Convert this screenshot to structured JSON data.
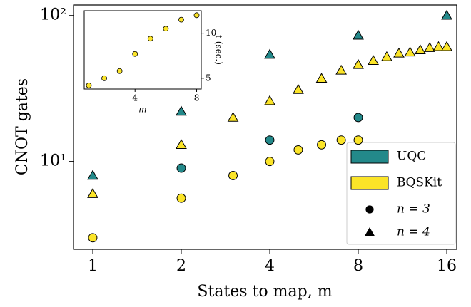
{
  "chart_data": [
    {
      "type": "scatter",
      "xlabel": "States to map, m",
      "ylabel": "CNOT gates",
      "xscale": "log",
      "yscale": "log",
      "xlim": [
        0.86,
        17.3
      ],
      "ylim": [
        2.5,
        118
      ],
      "xticks": [
        1,
        2,
        4,
        8,
        16
      ],
      "yticks": [
        {
          "value": 10,
          "label": "10¹"
        },
        {
          "value": 100,
          "label": "10²"
        }
      ],
      "legend": "lower right",
      "markers": [
        {
          "name": "n = 3",
          "shape": "circle"
        },
        {
          "name": "n = 4",
          "shape": "triangle"
        }
      ],
      "series": [
        {
          "name": "UQC",
          "color": "#23898a",
          "points": [
            {
              "x": [
                2,
                4,
                8
              ],
              "values": [
                9,
                14,
                20
              ]
            },
            {
              "x": [
                1,
                2,
                4,
                8,
                16
              ],
              "values": [
                8,
                22,
                54,
                73,
                100
              ]
            }
          ]
        },
        {
          "name": "BQSKit",
          "color": "#fbe428",
          "points": [
            {
              "x": [
                1,
                2,
                3,
                4,
                5,
                6,
                7,
                8
              ],
              "values": [
                3,
                5.6,
                8,
                10,
                12,
                13,
                14,
                14
              ]
            },
            {
              "x": [
                1,
                2,
                3,
                4,
                5,
                6,
                7,
                8,
                9,
                10,
                11,
                12,
                13,
                14,
                15,
                16
              ],
              "values": [
                6,
                13,
                20,
                26,
                31,
                37,
                42,
                46,
                49,
                52,
                55,
                56,
                58,
                60,
                61,
                61
              ]
            }
          ]
        }
      ]
    },
    {
      "type": "scatter",
      "xlabel": "m",
      "ylabel": "t (sec.)",
      "color": "#fbe428",
      "xlim": [
        0.7,
        8.3
      ],
      "ylim": [
        3.8,
        12.5
      ],
      "xticks": [
        4,
        8
      ],
      "yticks": [
        5,
        10
      ],
      "x": [
        1,
        2,
        3,
        4,
        5,
        6,
        7,
        8
      ],
      "values": [
        4.2,
        5.0,
        5.8,
        7.7,
        9.4,
        10.5,
        11.5,
        12.0
      ]
    }
  ]
}
